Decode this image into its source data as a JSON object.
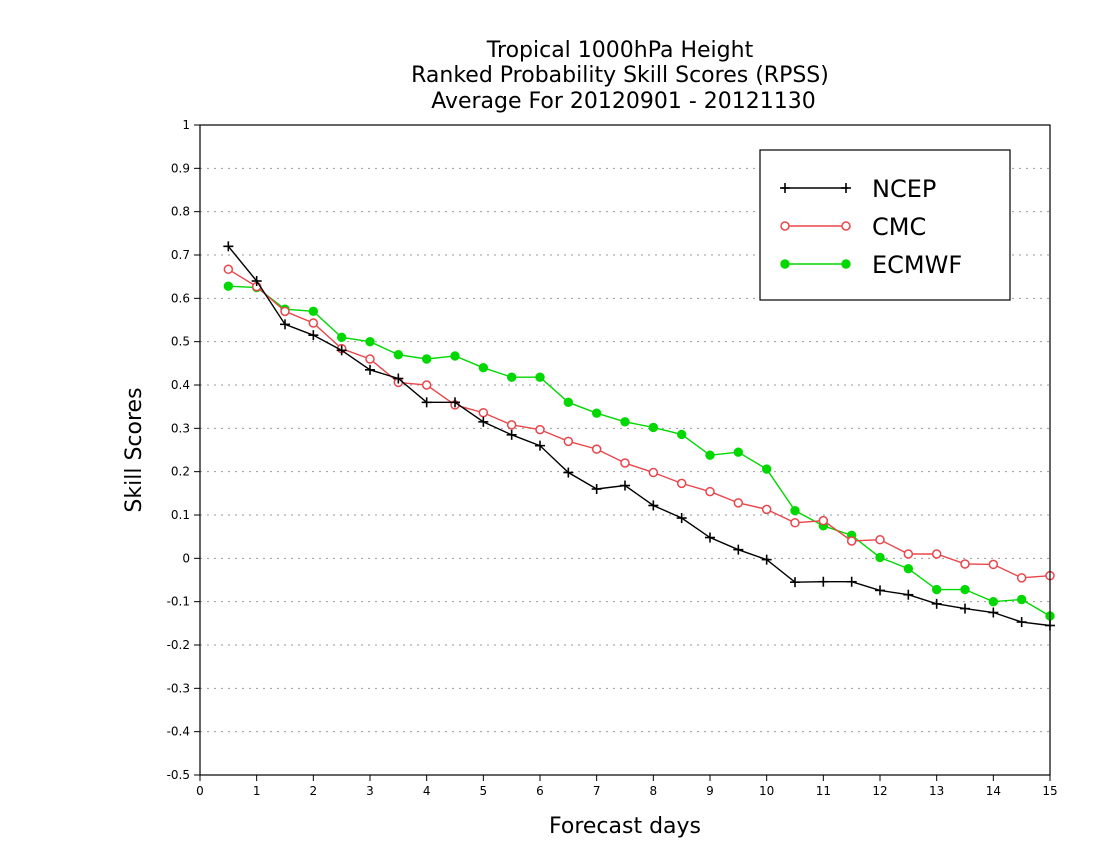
{
  "chart_data": {
    "type": "line",
    "title_lines": [
      "Tropical 1000hPa Height",
      "Ranked Probability Skill Scores (RPSS)",
      " Average For 20120901 - 20121130"
    ],
    "xlabel": "Forecast days",
    "ylabel": "Skill Scores",
    "xlim": [
      0,
      15
    ],
    "ylim": [
      -0.5,
      1
    ],
    "xticks": [
      0,
      1,
      2,
      3,
      4,
      5,
      6,
      7,
      8,
      9,
      10,
      11,
      12,
      13,
      14,
      15
    ],
    "xtick_labels": [
      "0",
      "1",
      "2",
      "3",
      "4",
      "5",
      "6",
      "7",
      "8",
      "9",
      "10",
      "11",
      "12",
      "13",
      "14",
      "15"
    ],
    "yticks": [
      -0.5,
      -0.4,
      -0.3,
      -0.2,
      -0.1,
      0,
      0.1,
      0.2,
      0.3,
      0.4,
      0.5,
      0.6,
      0.7,
      0.8,
      0.9,
      1
    ],
    "ytick_labels": [
      "-0.5",
      "-0.4",
      "-0.3",
      "-0.2",
      "-0.1",
      "0",
      "0.1",
      "0.2",
      "0.3",
      "0.4",
      "0.5",
      "0.6",
      "0.7",
      "0.8",
      "0.9",
      "1"
    ],
    "grid": "horizontal dotted",
    "legend_position": "top-right",
    "x": [
      0.5,
      1,
      1.5,
      2,
      2.5,
      3,
      3.5,
      4,
      4.5,
      5,
      5.5,
      6,
      6.5,
      7,
      7.5,
      8,
      8.5,
      9,
      9.5,
      10,
      10.5,
      11,
      11.5,
      12,
      12.5,
      13,
      13.5,
      14,
      14.5,
      15
    ],
    "series": [
      {
        "name": "NCEP",
        "color": "#000000",
        "marker": "plus",
        "values": [
          0.72,
          0.64,
          0.54,
          0.515,
          0.48,
          0.435,
          0.415,
          0.36,
          0.36,
          0.315,
          0.285,
          0.26,
          0.198,
          0.16,
          0.168,
          0.122,
          0.093,
          0.048,
          0.02,
          -0.003,
          -0.055,
          -0.054,
          -0.054,
          -0.074,
          -0.084,
          -0.105,
          -0.116,
          -0.125,
          -0.147,
          -0.155
        ]
      },
      {
        "name": "CMC",
        "color": "#e8464b",
        "marker": "open-circle",
        "values": [
          0.667,
          0.627,
          0.57,
          0.543,
          0.484,
          0.46,
          0.406,
          0.4,
          0.354,
          0.336,
          0.308,
          0.297,
          0.27,
          0.252,
          0.22,
          0.198,
          0.173,
          0.154,
          0.128,
          0.113,
          0.082,
          0.087,
          0.04,
          0.043,
          0.01,
          0.01,
          -0.013,
          -0.014,
          -0.045,
          -0.04
        ]
      },
      {
        "name": "ECMWF",
        "color": "#00d800",
        "marker": "filled-circle",
        "values": [
          0.628,
          0.625,
          0.575,
          0.57,
          0.51,
          0.5,
          0.47,
          0.46,
          0.467,
          0.44,
          0.418,
          0.418,
          0.36,
          0.335,
          0.315,
          0.302,
          0.286,
          0.238,
          0.245,
          0.206,
          0.11,
          0.075,
          0.053,
          0.002,
          -0.024,
          -0.072,
          -0.072,
          -0.1,
          -0.095,
          -0.133
        ]
      }
    ]
  }
}
